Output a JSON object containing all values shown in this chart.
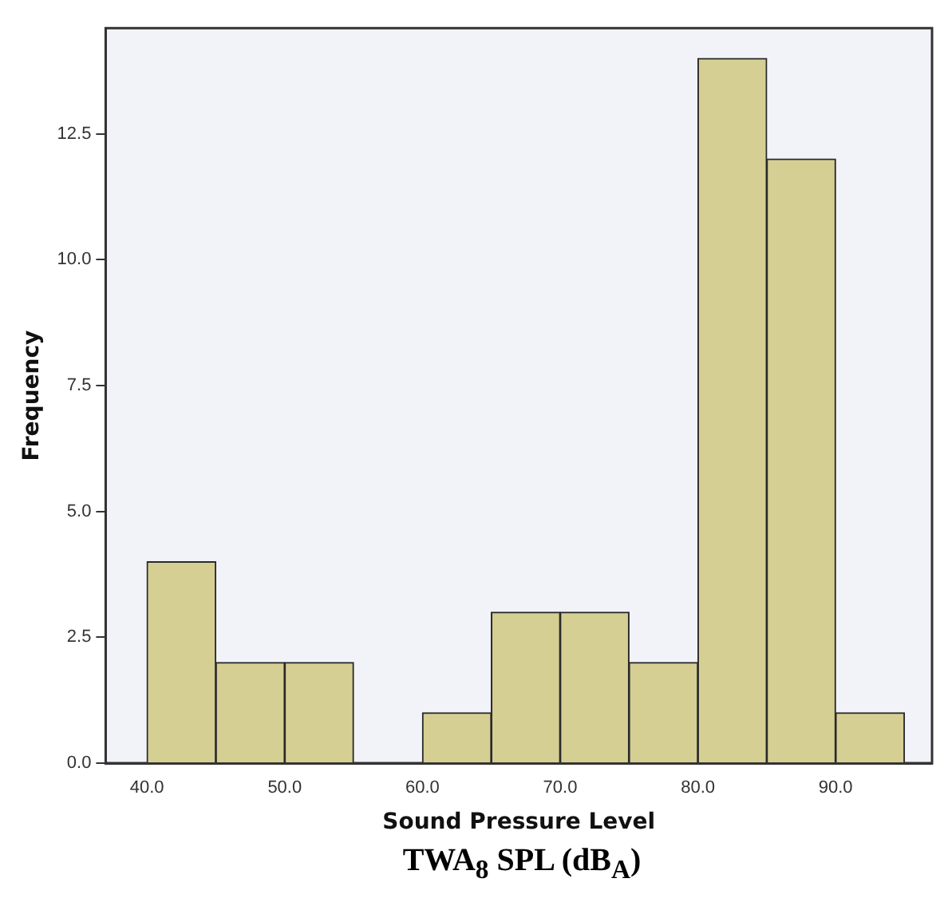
{
  "chart_data": {
    "type": "histogram",
    "xlabel": "Sound Pressure Level",
    "ylabel": "Frequency",
    "annotations": [
      "TWA$_{8}$ SPL (dB$_{A}$)"
    ],
    "bins": [
      40,
      45,
      50,
      55,
      60,
      65,
      70,
      75,
      80,
      85,
      90,
      95
    ],
    "values": [
      4,
      2,
      2,
      0,
      1,
      3,
      3,
      2,
      14,
      12,
      1
    ],
    "color": "#d6cf94",
    "xlim": [
      37,
      97
    ],
    "xticks": [
      {
        "value": 40,
        "label": "40.0"
      },
      {
        "value": 50,
        "label": "50.0"
      },
      {
        "value": 60,
        "label": "60.0"
      },
      {
        "value": 70,
        "label": "70.0"
      },
      {
        "value": 80,
        "label": "80.0"
      },
      {
        "value": 90,
        "label": "90.0"
      }
    ],
    "ylim": [
      0,
      14.6
    ],
    "yticks": [
      {
        "value": 0,
        "label": "0.0"
      },
      {
        "value": 2.5,
        "label": "2.5"
      },
      {
        "value": 5,
        "label": "5.0"
      },
      {
        "value": 7.5,
        "label": "7.5"
      },
      {
        "value": 10,
        "label": "10.0"
      },
      {
        "value": 12.5,
        "label": "12.5"
      }
    ],
    "grid": false,
    "legend": false
  }
}
